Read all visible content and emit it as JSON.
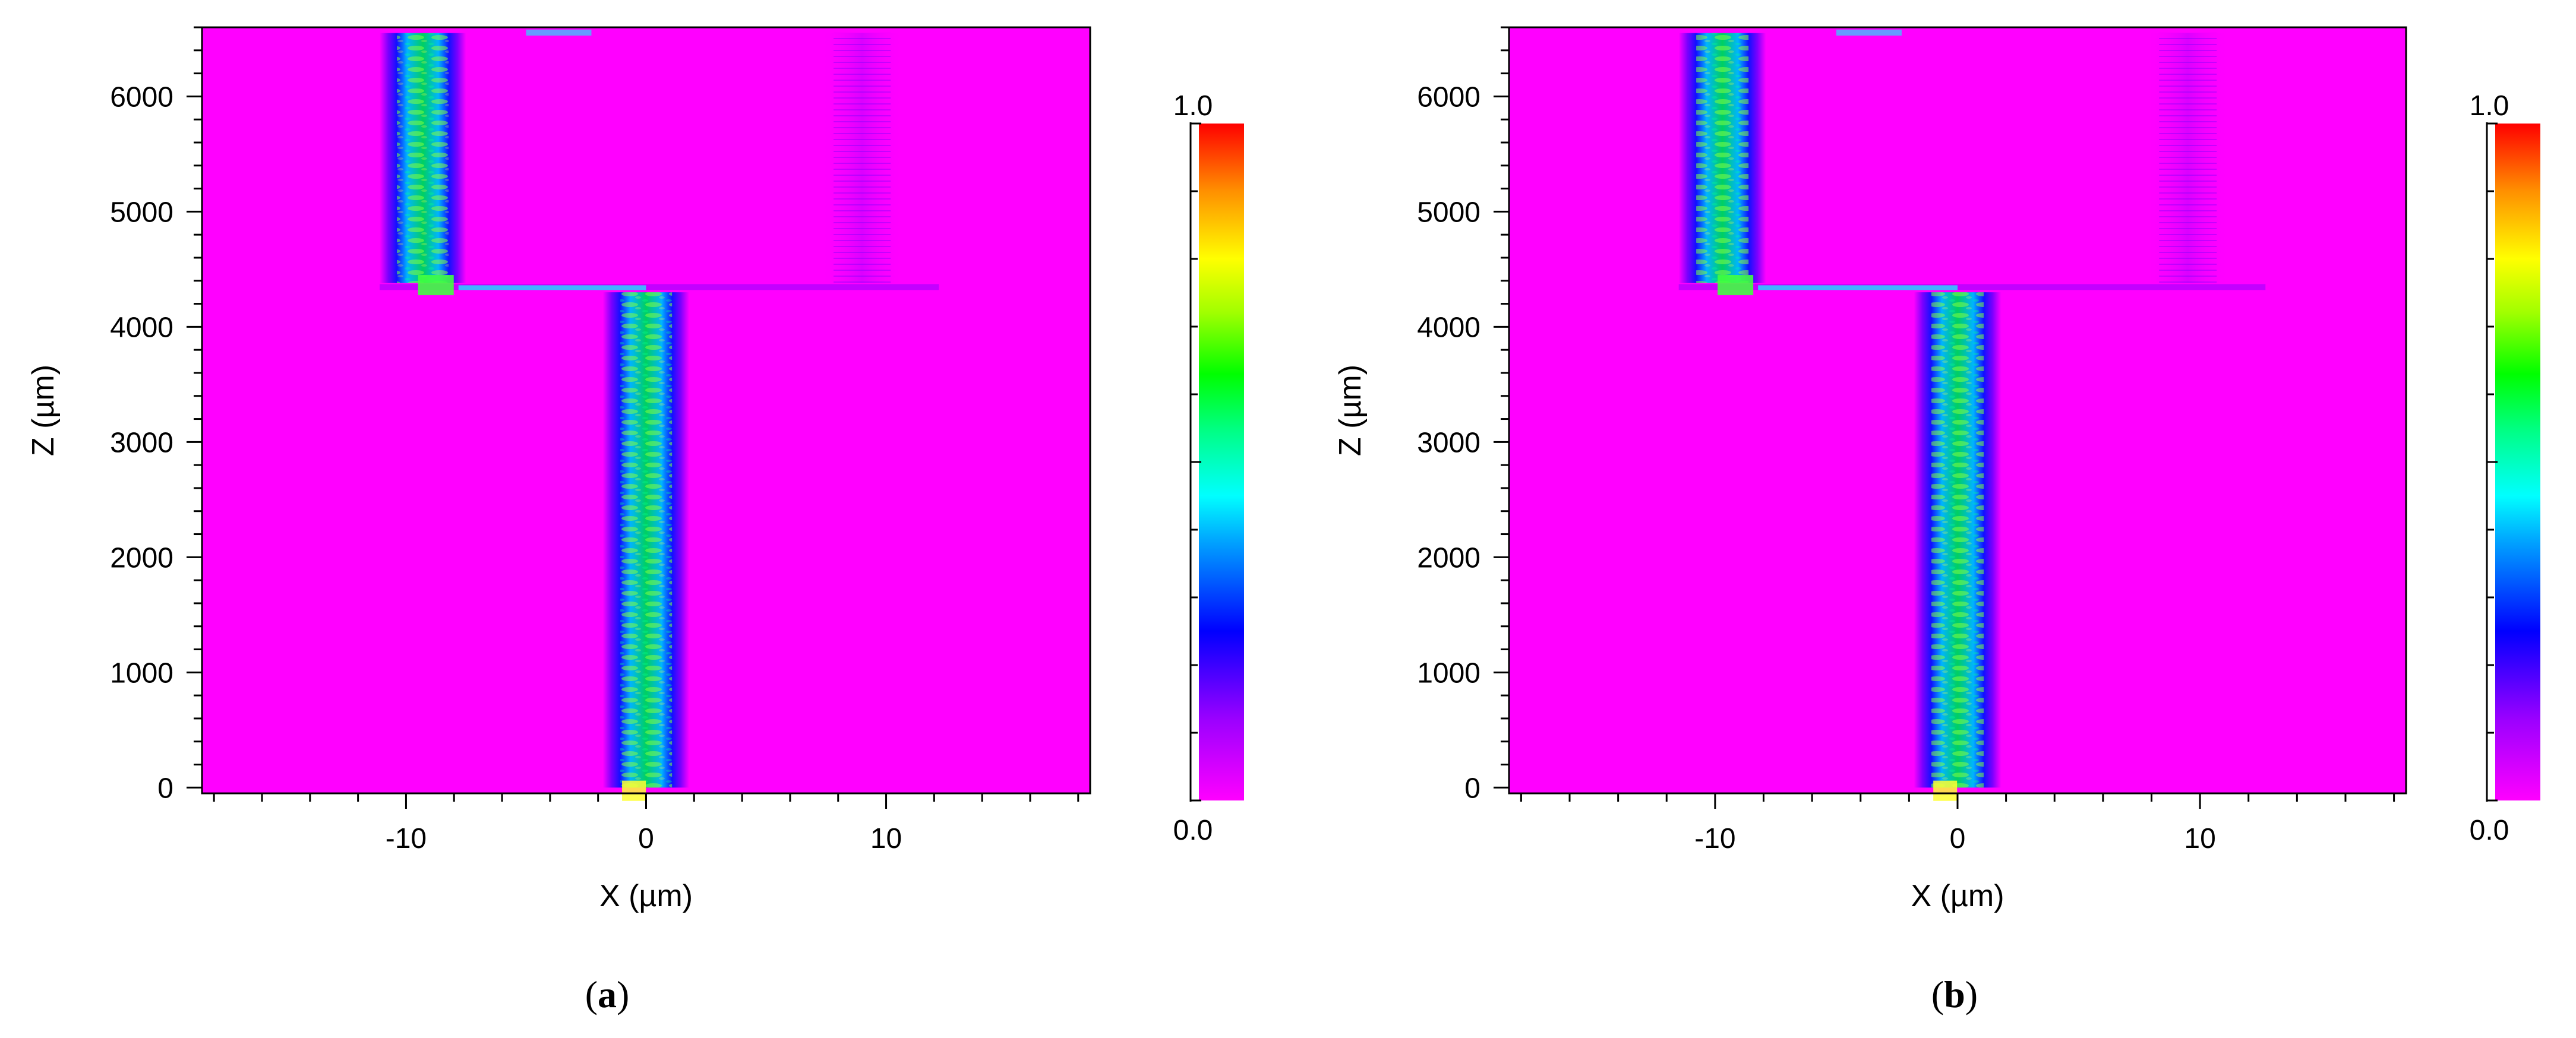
{
  "chart_data": [
    {
      "type": "heatmap",
      "panel_label": "(a)",
      "panel_letter": "a",
      "xlabel": "X (µm)",
      "ylabel": "Z (µm)",
      "xlim": [
        -18.5,
        18.5
      ],
      "ylim": [
        -50,
        6600
      ],
      "x_ticks": [
        -10,
        0,
        10
      ],
      "y_ticks": [
        0,
        1000,
        2000,
        3000,
        4000,
        5000,
        6000
      ],
      "colorbar": {
        "min_label": "0.0",
        "max_label": "1.0",
        "min": 0.0,
        "max": 1.0
      },
      "background_value": 0.0,
      "beams": [
        {
          "name": "",
          "x_center": 0.0,
          "half_width": 1.8,
          "z_start": 0,
          "z_end": 4300,
          "peak": 0.55
        },
        {
          "name": "",
          "x_center": -9.3,
          "half_width": 1.8,
          "z_start": 4380,
          "z_end": 6550,
          "peak": 0.5
        },
        {
          "name": "",
          "x_center": 9.0,
          "half_width": 1.7,
          "z_start": 4380,
          "z_end": 6550,
          "peak": 0.08
        }
      ]
    },
    {
      "type": "heatmap",
      "panel_label": "(b)",
      "panel_letter": "b",
      "xlabel": "X (µm)",
      "ylabel": "Z (µm)",
      "xlim": [
        -18.5,
        18.5
      ],
      "ylim": [
        -50,
        6600
      ],
      "x_ticks": [
        -10,
        0,
        10
      ],
      "y_ticks": [
        0,
        1000,
        2000,
        3000,
        4000,
        5000,
        6000
      ],
      "colorbar": {
        "min_label": "0.0",
        "max_label": "1.0",
        "min": 0.0,
        "max": 1.0
      },
      "background_value": 0.0,
      "beams": [
        {
          "name": "",
          "x_center": 0.0,
          "half_width": 1.8,
          "z_start": 0,
          "z_end": 4300,
          "peak": 0.55
        },
        {
          "name": "",
          "x_center": -9.7,
          "half_width": 1.8,
          "z_start": 4380,
          "z_end": 6550,
          "peak": 0.5
        },
        {
          "name": "",
          "x_center": 9.5,
          "half_width": 1.7,
          "z_start": 4380,
          "z_end": 6550,
          "peak": 0.08
        }
      ]
    }
  ]
}
